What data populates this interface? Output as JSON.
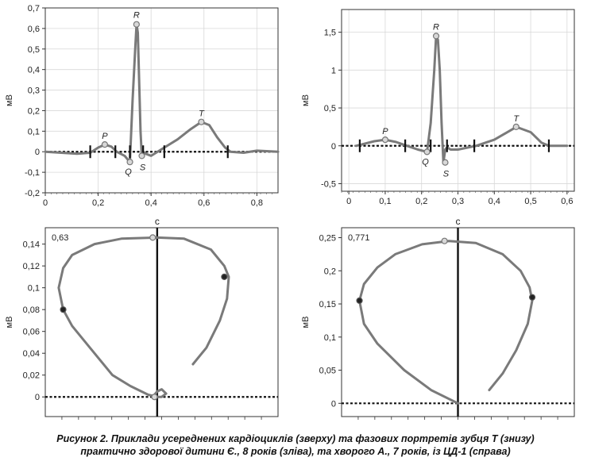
{
  "caption": {
    "line1": "Рисунок 2. Приклади усереднених кардіоциклів (зверху) та фазових портретів зубця Т (знизу)",
    "line2": "практично здорової дитини Є., 8 років (зліва), та хворого А., 7 років, із ЦД-1 (справа)"
  },
  "chart_data": [
    {
      "type": "line",
      "ylabel": "мВ",
      "xlabel": "",
      "xlim": [
        0,
        0.88
      ],
      "ylim": [
        -0.2,
        0.7
      ],
      "xticks": [
        "0",
        "0,2",
        "0,4",
        "0,6",
        "0,8"
      ],
      "yticks": [
        "-0,2",
        "-0,1",
        "0",
        "0,1",
        "0,2",
        "0,3",
        "0,4",
        "0,5",
        "0,6",
        "0,7"
      ],
      "grid": true,
      "color": "#7a7a7a",
      "series": [
        {
          "x": [
            0,
            0.12,
            0.17,
            0.2,
            0.225,
            0.25,
            0.27,
            0.3,
            0.32,
            0.33,
            0.34,
            0.345,
            0.35,
            0.36,
            0.365,
            0.37,
            0.38,
            0.4,
            0.45,
            0.5,
            0.55,
            0.59,
            0.62,
            0.65,
            0.68,
            0.7,
            0.75,
            0.8,
            0.88
          ],
          "y": [
            0,
            -0.01,
            -0.005,
            0.02,
            0.035,
            0.025,
            0.0,
            -0.02,
            -0.05,
            0.25,
            0.5,
            0.62,
            0.58,
            0.1,
            -0.02,
            0.0,
            -0.01,
            -0.02,
            0.02,
            0.06,
            0.11,
            0.145,
            0.13,
            0.07,
            0.02,
            0.0,
            -0.005,
            0.005,
            0.0
          ]
        }
      ],
      "points": [
        {
          "label": "P",
          "x": 0.225,
          "y": 0.035
        },
        {
          "label": "Q",
          "x": 0.32,
          "y": -0.05
        },
        {
          "label": "R",
          "x": 0.345,
          "y": 0.62
        },
        {
          "label": "S",
          "x": 0.365,
          "y": -0.02
        },
        {
          "label": "T",
          "x": 0.59,
          "y": 0.145
        }
      ],
      "markers_x": [
        0.17,
        0.265,
        0.32,
        0.37,
        0.45,
        0.69
      ]
    },
    {
      "type": "line",
      "ylabel": "мВ",
      "xlabel": "",
      "xlim": [
        -0.02,
        0.62
      ],
      "ylim": [
        -0.6,
        1.8
      ],
      "xticks": [
        "0",
        "0,1",
        "0,2",
        "0,3",
        "0,4",
        "0,5",
        "0,6"
      ],
      "yticks": [
        "-0,5",
        "0",
        "0,5",
        "1",
        "1,5"
      ],
      "grid": true,
      "color": "#7a7a7a",
      "series": [
        {
          "x": [
            0.02,
            0.07,
            0.1,
            0.13,
            0.16,
            0.19,
            0.215,
            0.225,
            0.235,
            0.24,
            0.245,
            0.25,
            0.255,
            0.26,
            0.265,
            0.27,
            0.28,
            0.3,
            0.35,
            0.4,
            0.45,
            0.46,
            0.5,
            0.53,
            0.55,
            0.6
          ],
          "y": [
            0,
            0.06,
            0.08,
            0.05,
            0.0,
            -0.05,
            -0.08,
            0.3,
            1.0,
            1.45,
            1.4,
            1.0,
            0.3,
            -0.22,
            -0.05,
            -0.02,
            -0.05,
            -0.05,
            0.0,
            0.08,
            0.22,
            0.25,
            0.18,
            0.04,
            0.0,
            0.0
          ]
        }
      ],
      "points": [
        {
          "label": "P",
          "x": 0.1,
          "y": 0.08
        },
        {
          "label": "Q",
          "x": 0.215,
          "y": -0.08
        },
        {
          "label": "R",
          "x": 0.24,
          "y": 1.45
        },
        {
          "label": "S",
          "x": 0.265,
          "y": -0.22
        },
        {
          "label": "T",
          "x": 0.46,
          "y": 0.25
        }
      ],
      "markers_x": [
        0.03,
        0.155,
        0.225,
        0.27,
        0.345,
        0.55
      ]
    },
    {
      "type": "line",
      "ylabel": "мВ",
      "top_label": "с",
      "corner_label": "0,63",
      "ylim": [
        -0.018,
        0.155
      ],
      "yticks": [
        "0",
        "0,02",
        "0,04",
        "0,06",
        "0,08",
        "0,1",
        "0,12",
        "0,14"
      ],
      "grid": false,
      "color": "#7a7a7a",
      "series": [
        {
          "x": [
            0.0,
            -0.1,
            -0.3,
            -0.5,
            -0.75,
            -0.95,
            -1.05,
            -1.1,
            -1.05,
            -0.95,
            -0.7,
            -0.4,
            0.0,
            0.3,
            0.6,
            0.75,
            0.8,
            0.78,
            0.7,
            0.55,
            0.4
          ],
          "y": [
            0.0,
            0.002,
            0.01,
            0.02,
            0.045,
            0.065,
            0.08,
            0.1,
            0.118,
            0.13,
            0.14,
            0.145,
            0.146,
            0.145,
            0.135,
            0.12,
            0.11,
            0.09,
            0.07,
            0.045,
            0.03
          ]
        },
        {
          "x": [
            -0.05,
            0.0,
            0.05,
            0.1,
            0.05,
            0.0
          ],
          "y": [
            0.0,
            0.005,
            0.007,
            0.003,
            0.0,
            0.0
          ]
        }
      ],
      "points": [
        {
          "x": -1.05,
          "y": 0.08,
          "style": "dark"
        },
        {
          "x": 0.75,
          "y": 0.11,
          "style": "dark"
        },
        {
          "x": -0.05,
          "y": 0.146,
          "style": "light"
        },
        {
          "x": -0.03,
          "y": 0.0,
          "style": "light"
        }
      ],
      "xlim": [
        -1.25,
        1.35
      ]
    },
    {
      "type": "line",
      "ylabel": "мВ",
      "top_label": "с",
      "corner_label": "0,771",
      "ylim": [
        -0.02,
        0.265
      ],
      "yticks": [
        "0",
        "0,05",
        "0,1",
        "0,15",
        "0,2",
        "0,25"
      ],
      "grid": false,
      "color": "#7a7a7a",
      "series": [
        {
          "x": [
            0.0,
            -0.3,
            -0.6,
            -0.9,
            -1.05,
            -1.1,
            -1.05,
            -0.9,
            -0.7,
            -0.4,
            -0.1,
            0.2,
            0.5,
            0.7,
            0.8,
            0.83,
            0.78,
            0.65,
            0.5,
            0.35
          ],
          "y": [
            0.0,
            0.02,
            0.05,
            0.09,
            0.12,
            0.155,
            0.18,
            0.205,
            0.225,
            0.24,
            0.245,
            0.242,
            0.225,
            0.2,
            0.175,
            0.155,
            0.12,
            0.08,
            0.045,
            0.02
          ]
        }
      ],
      "points": [
        {
          "x": -1.1,
          "y": 0.155,
          "style": "dark"
        },
        {
          "x": 0.83,
          "y": 0.16,
          "style": "dark"
        },
        {
          "x": -0.15,
          "y": 0.245,
          "style": "light"
        }
      ],
      "xlim": [
        -1.3,
        1.3
      ]
    }
  ]
}
